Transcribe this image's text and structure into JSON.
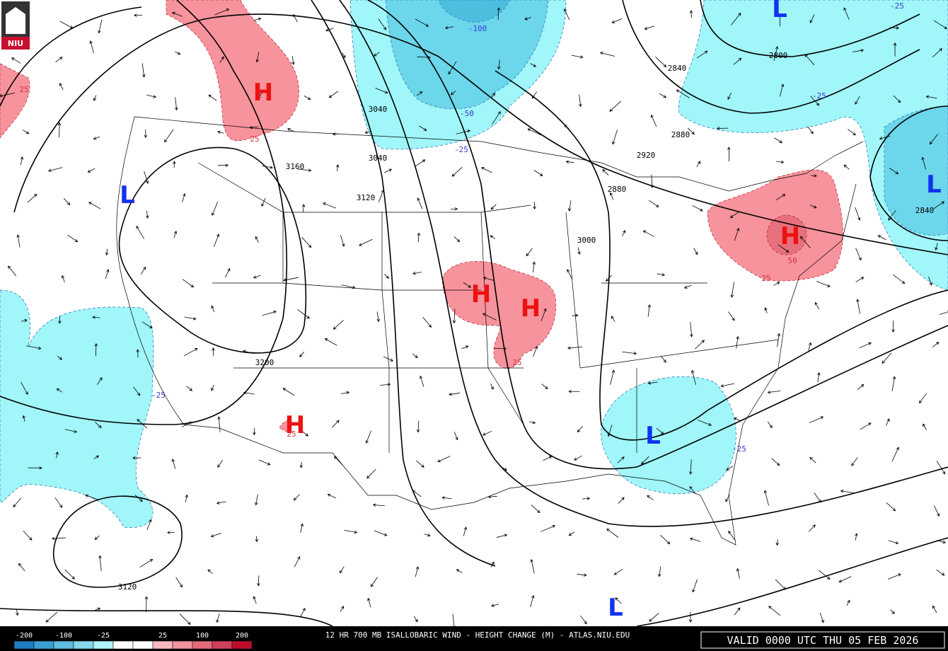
{
  "logo": "NIU",
  "title": "12 HR 700 MB ISALLOBARIC WIND - HEIGHT CHANGE (M) - ATLAS.NIU.EDU",
  "valid": "VALID 0000 UTC THU 05 FEB 2026",
  "legend": {
    "labels": [
      "-200",
      "-100",
      "-25",
      "25",
      "100",
      "200"
    ],
    "colors": [
      "#1d7cbf",
      "#3c9dd4",
      "#5fbde0",
      "#86d8ec",
      "#aef4f8",
      "#ffffff",
      "#ffffff",
      "#f7b7bf",
      "#ef94a0",
      "#e26b7b",
      "#d0405a",
      "#be0d2c"
    ]
  },
  "centers": [
    "H",
    "H",
    "H",
    "H",
    "H",
    "L",
    "L",
    "L",
    "L",
    "L"
  ],
  "contour_labels": [
    "3040",
    "3040",
    "3160",
    "3120",
    "3200",
    "3120",
    "2840",
    "2800",
    "2880",
    "2920",
    "2880",
    "3000",
    "2840"
  ],
  "change_labels": [
    "-100",
    "-50",
    "-25",
    "-25",
    "-25",
    "-25",
    "-25",
    "25",
    "25",
    "25",
    "25",
    "25",
    "50"
  ]
}
